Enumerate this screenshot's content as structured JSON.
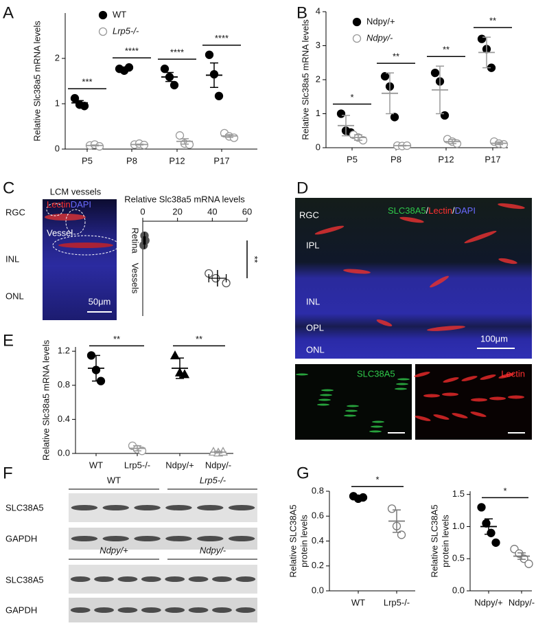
{
  "figure": {
    "panel_labels": [
      "A",
      "B",
      "C",
      "D",
      "E",
      "F",
      "G"
    ],
    "panel_c_image": {
      "title": "LCM vessels",
      "stain_1": "Lectin",
      "stain_2": "DAPI",
      "layers": [
        "RGC",
        "INL",
        "ONL"
      ],
      "vessel": "Vessel",
      "scale": "50μm"
    },
    "panel_d": {
      "title": [
        "SLC38A5",
        "/",
        "Lectin",
        "/",
        "DAPI"
      ],
      "layers": [
        "RGC",
        "IPL",
        "INL",
        "OPL",
        "ONL"
      ],
      "scale": "100μm",
      "left_image": "SLC38A5",
      "right_image": "Lectin"
    },
    "panel_f": {
      "groups_top": [
        "WT",
        "Lrp5-/-"
      ],
      "rows_top": [
        "SLC38A5",
        "GAPDH"
      ],
      "groups_bottom": [
        "Ndpy/+",
        "Ndpy/-"
      ],
      "rows_bottom": [
        "SLC38A5",
        "GAPDH"
      ]
    }
  },
  "chart_data": [
    {
      "type": "dotplot",
      "ylabel": "Relative Slc38a5 mRNA levels",
      "categories": [
        "P5",
        "P8",
        "P12",
        "P17"
      ],
      "ylim": [
        0,
        3
      ],
      "yticks": [
        0,
        1,
        2
      ],
      "series": [
        {
          "name": "WT",
          "color": "#000000",
          "fill": "filled",
          "marker": "circle",
          "values": [
            [
              1.12,
              0.98,
              0.95
            ],
            [
              1.77,
              1.73,
              1.8
            ],
            [
              1.77,
              1.59,
              1.41
            ],
            [
              2.08,
              1.65,
              1.17
            ]
          ],
          "means": [
            1.02,
            1.77,
            1.59,
            1.63
          ],
          "errors": [
            0.05,
            0.02,
            0.1,
            0.27
          ]
        },
        {
          "name": "Lrp5-/-",
          "color": "#999999",
          "fill": "open",
          "marker": "circle",
          "values": [
            [
              0.08,
              0.1,
              0.06
            ],
            [
              0.1,
              0.12,
              0.09
            ],
            [
              0.3,
              0.12,
              0.1
            ],
            [
              0.35,
              0.28,
              0.25
            ]
          ],
          "means": [
            0.08,
            0.1,
            0.17,
            0.29
          ],
          "errors": [
            0.01,
            0.01,
            0.06,
            0.03
          ]
        }
      ],
      "significance": [
        "***",
        "****",
        "****",
        "****"
      ]
    },
    {
      "type": "dotplot",
      "ylabel": "Relative Slc38a5 mRNA levels",
      "categories": [
        "P5",
        "P8",
        "P12",
        "P17"
      ],
      "ylim": [
        0,
        4
      ],
      "yticks": [
        0,
        1,
        2,
        3,
        4
      ],
      "errorbar_color": "#999999",
      "series": [
        {
          "name": "Ndpy/+",
          "color": "#000000",
          "fill": "filled",
          "marker": "circle",
          "values": [
            [
              1.0,
              0.5,
              0.45
            ],
            [
              2.1,
              1.8,
              0.9
            ],
            [
              2.2,
              1.95,
              0.95
            ],
            [
              3.2,
              2.9,
              2.35
            ]
          ],
          "means": [
            0.65,
            1.6,
            1.7,
            2.8
          ],
          "errors": [
            0.3,
            0.6,
            0.7,
            0.45
          ]
        },
        {
          "name": "Ndpy/-",
          "color": "#999999",
          "fill": "open",
          "marker": "circle",
          "values": [
            [
              0.38,
              0.3,
              0.22
            ],
            [
              0.06,
              0.05,
              0.06
            ],
            [
              0.25,
              0.18,
              0.12
            ],
            [
              0.18,
              0.12,
              0.1
            ]
          ],
          "means": [
            0.3,
            0.06,
            0.18,
            0.13
          ],
          "errors": [
            0.08,
            0.01,
            0.06,
            0.04
          ]
        }
      ],
      "significance": [
        "*",
        "**",
        "**",
        "**"
      ]
    },
    {
      "type": "dotplot",
      "orientation": "horizontal",
      "xlabel": "Relative Slc38a5 mRNA levels",
      "categories": [
        "Retina",
        "Vessels"
      ],
      "xlim": [
        0,
        60
      ],
      "xticks": [
        0,
        20,
        40,
        60
      ],
      "values": [
        [
          1,
          1.5,
          0.5
        ],
        [
          38,
          42,
          48
        ]
      ],
      "means": [
        1,
        43
      ],
      "errors": [
        0.5,
        5
      ],
      "markers": [
        "circle",
        "circle"
      ],
      "fills": [
        "filled",
        "open"
      ],
      "colors": [
        "#555555",
        "#555555"
      ],
      "significance": [
        "**"
      ]
    },
    {
      "type": "dotplot",
      "ylabel": "Relative Slc38a5 mRNA levels",
      "categories": [
        "WT",
        "Lrp5-/-",
        "Ndpy/+",
        "Ndpy/-"
      ],
      "ylim": [
        0,
        1.25
      ],
      "yticks": [
        {
          "value": 0,
          "label": "0.0"
        },
        0.4,
        0.8,
        1.2
      ],
      "values": [
        [
          1.15,
          0.98,
          0.85
        ],
        [
          0.09,
          0.05,
          0.03
        ],
        [
          1.15,
          0.95,
          0.93
        ],
        [
          0.02,
          0.01,
          0.02
        ]
      ],
      "means": [
        1.0,
        0.06,
        1.0,
        0.015
      ],
      "errors": [
        0.15,
        0.03,
        0.12,
        0.01
      ],
      "markers": [
        "circle",
        "circle",
        "triangle",
        "triangle"
      ],
      "fills": [
        "filled",
        "open",
        "filled",
        "open"
      ],
      "colors": [
        "#000000",
        "#999999",
        "#000000",
        "#999999"
      ],
      "significance": [
        "**",
        "**"
      ]
    },
    {
      "type": "dotplot",
      "ylabel": [
        "Relative SLC38A5",
        "protein levels"
      ],
      "categories": [
        "WT",
        "Lrp5-/-"
      ],
      "ylim": [
        0,
        0.8
      ],
      "yticks": [
        {
          "value": 0,
          "label": "0.0"
        },
        0.2,
        0.4,
        0.6,
        0.8
      ],
      "values": [
        [
          0.76,
          0.74,
          0.75
        ],
        [
          0.66,
          0.52,
          0.45
        ]
      ],
      "means": [
        0.75,
        0.56
      ],
      "errors": [
        0.01,
        0.09
      ],
      "markers": [
        "circle",
        "circle"
      ],
      "fills": [
        "filled",
        "open"
      ],
      "colors": [
        "#000000",
        "#777777"
      ],
      "significance": [
        "*"
      ]
    },
    {
      "type": "dotplot",
      "ylabel": [
        "Relative SLC38A5",
        "protein levels"
      ],
      "categories": [
        "Ndpy/+",
        "Ndpy/-"
      ],
      "ylim": [
        0,
        1.55
      ],
      "yticks": [
        {
          "value": 0,
          "label": "0.0"
        },
        0.5,
        {
          "value": 1,
          "label": "1.0"
        },
        1.5
      ],
      "values": [
        [
          1.3,
          1.05,
          0.9,
          0.75
        ],
        [
          0.65,
          0.58,
          0.5,
          0.42
        ]
      ],
      "means": [
        1.0,
        0.54
      ],
      "errors": [
        0.12,
        0.05
      ],
      "markers": [
        "circle",
        "circle"
      ],
      "fills": [
        "filled",
        "open"
      ],
      "colors": [
        "#000000",
        "#777777"
      ],
      "significance": [
        "*"
      ]
    }
  ]
}
